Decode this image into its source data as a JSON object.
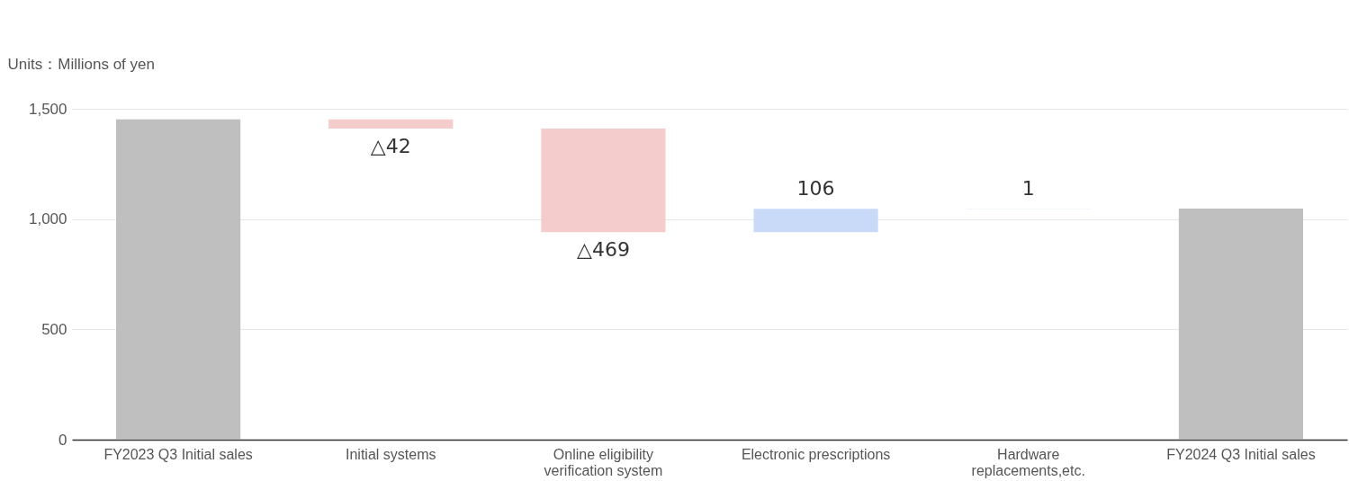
{
  "chart_data": {
    "type": "bar",
    "ylabel": "Units：Millions of yen",
    "categories": [
      "FY2023 Q3 Initial sales",
      "Initial systems",
      "Online eligibility verification system",
      "Electronic prescriptions",
      "Hardware replacements,etc.",
      "FY2024 Q3 Initial sales"
    ],
    "values": [
      1452,
      -42,
      -469,
      106,
      1,
      1048
    ],
    "base": [
      0,
      1452,
      1410,
      941,
      1047,
      0
    ],
    "colors": [
      "#bfbfbf",
      "#f4cccc",
      "#f4cccc",
      "#c9daf8",
      "#c9daf8",
      "#bfbfbf"
    ],
    "value_labels": [
      null,
      "△42",
      "△469",
      "106",
      "1",
      null
    ],
    "ylim": [
      0,
      1500
    ],
    "yticks": [
      {
        "value": 0,
        "label": "0"
      },
      {
        "value": 500,
        "label": "500"
      },
      {
        "value": 1000,
        "label": "1,000"
      },
      {
        "value": 1500,
        "label": "1,500"
      }
    ],
    "grid": "y"
  }
}
